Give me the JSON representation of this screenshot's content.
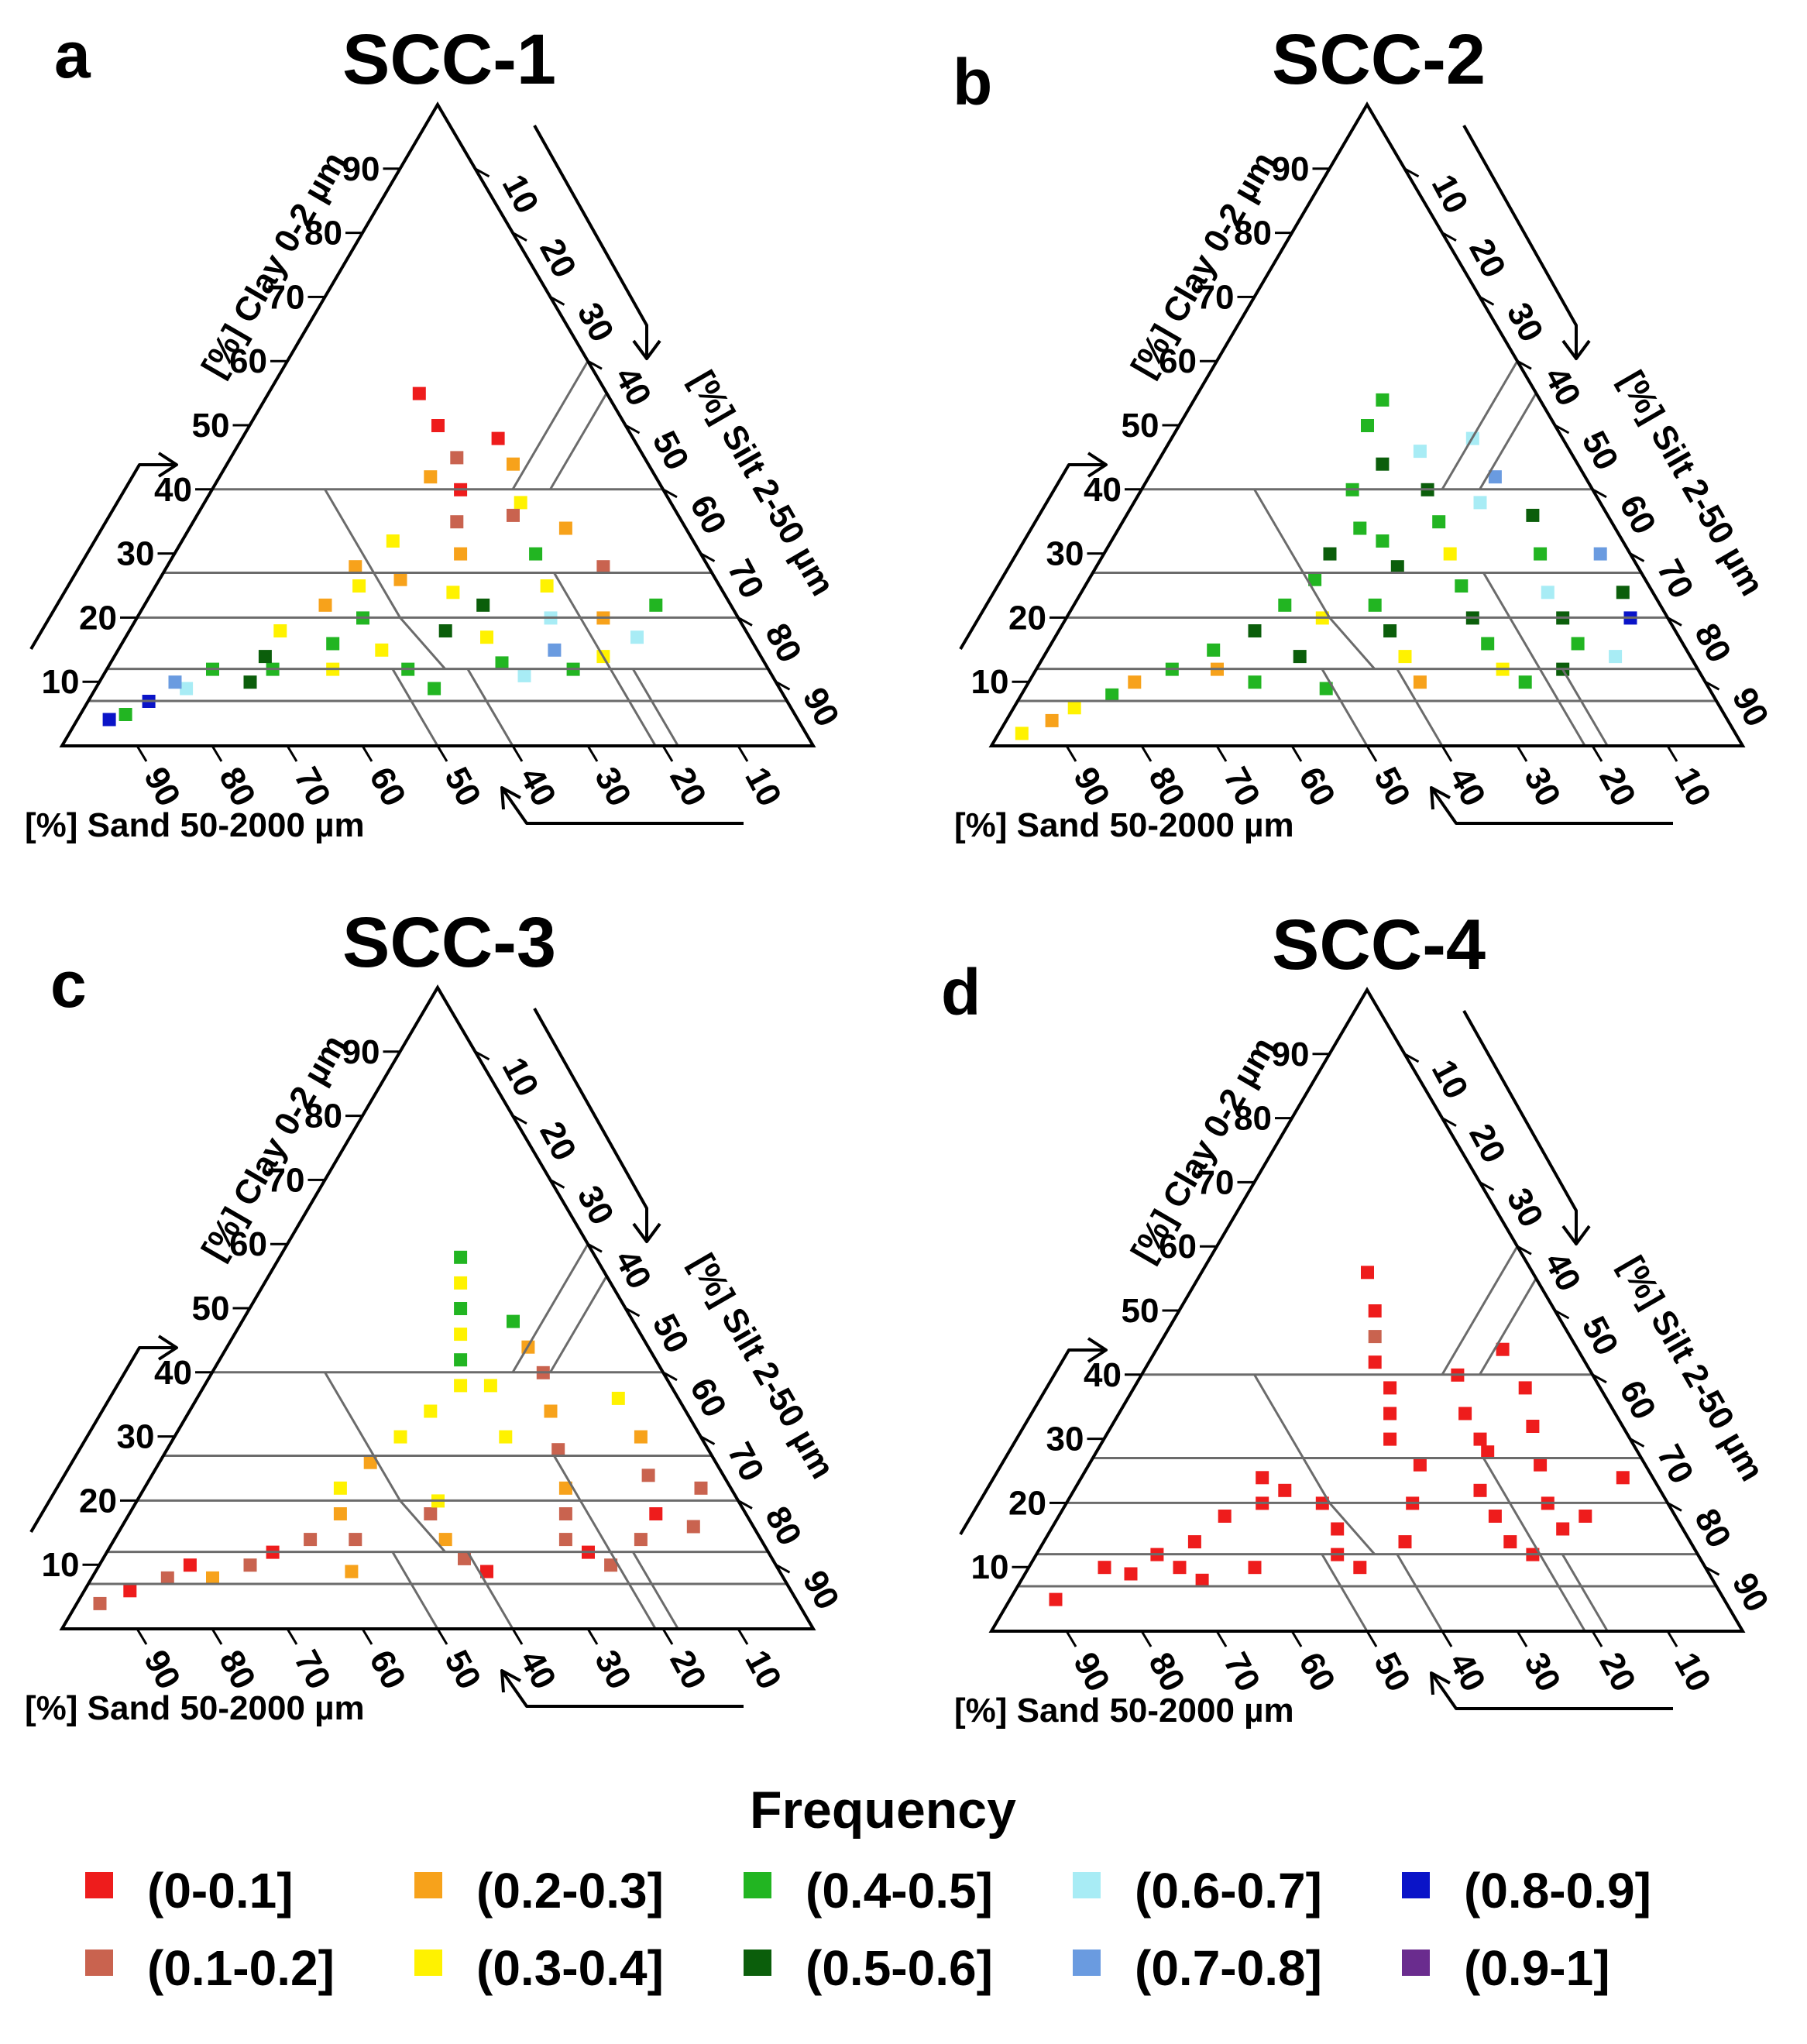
{
  "figure": {
    "legend": {
      "title": "Frequency",
      "entries": [
        {
          "label": "(0-0.1]",
          "color": "#ee1c1c"
        },
        {
          "label": "(0.1-0.2]",
          "color": "#c9634f"
        },
        {
          "label": "(0.2-0.3]",
          "color": "#f7a21b"
        },
        {
          "label": "(0.3-0.4]",
          "color": "#fff200"
        },
        {
          "label": "(0.4-0.5]",
          "color": "#22b522"
        },
        {
          "label": "(0.5-0.6]",
          "color": "#0b5e0b"
        },
        {
          "label": "(0.6-0.7]",
          "color": "#a8ecf5"
        },
        {
          "label": "(0.7-0.8]",
          "color": "#6a9be0"
        },
        {
          "label": "(0.8-0.9]",
          "color": "#0a14c8"
        },
        {
          "label": "(0.9-1]",
          "color": "#6a2c8e"
        }
      ]
    }
  },
  "chart_data": [
    {
      "type": "heatmap",
      "chart_kind": "ternary",
      "panel": "a",
      "title": "SCC-1",
      "axes": {
        "clay": "[%] Clay 0-2 µm",
        "silt": "[%] Silt 2-50 µm",
        "sand": "[%] Sand 50-2000 µm"
      },
      "ticks": [
        "10",
        "20",
        "30",
        "40",
        "50",
        "60",
        "70",
        "80",
        "90"
      ],
      "grid": "USDA texture class boundaries",
      "region": {
        "clay_range": [
          2,
          56
        ],
        "silt_range": [
          5,
          75
        ],
        "sand_range": [
          15,
          92
        ]
      },
      "dominant_bins": [
        "(0.2-0.3]",
        "(0.3-0.4]",
        "(0.4-0.5]",
        "(0.1-0.2]"
      ],
      "cells": [
        [
          4,
          4,
          88,
          8
        ],
        [
          5,
          6,
          90,
          4
        ],
        [
          7,
          8,
          85,
          8
        ],
        [
          9,
          12,
          79,
          6
        ],
        [
          10,
          10,
          80,
          7
        ],
        [
          12,
          14,
          74,
          4
        ],
        [
          10,
          20,
          70,
          5
        ],
        [
          12,
          22,
          66,
          4
        ],
        [
          14,
          20,
          66,
          5
        ],
        [
          18,
          20,
          62,
          3
        ],
        [
          22,
          24,
          54,
          2
        ],
        [
          25,
          27,
          48,
          3
        ],
        [
          28,
          25,
          47,
          2
        ],
        [
          20,
          30,
          50,
          4
        ],
        [
          15,
          35,
          50,
          3
        ],
        [
          12,
          40,
          48,
          4
        ],
        [
          18,
          42,
          40,
          5
        ],
        [
          24,
          40,
          36,
          3
        ],
        [
          30,
          38,
          32,
          2
        ],
        [
          35,
          35,
          30,
          1
        ],
        [
          40,
          33,
          27,
          0
        ],
        [
          45,
          30,
          25,
          1
        ],
        [
          50,
          25,
          25,
          0
        ],
        [
          55,
          20,
          25,
          0
        ],
        [
          42,
          28,
          30,
          2
        ],
        [
          38,
          42,
          20,
          3
        ],
        [
          30,
          48,
          22,
          4
        ],
        [
          25,
          52,
          23,
          3
        ],
        [
          20,
          55,
          25,
          6
        ],
        [
          15,
          58,
          27,
          7
        ],
        [
          12,
          62,
          26,
          4
        ],
        [
          14,
          65,
          21,
          3
        ],
        [
          20,
          62,
          18,
          2
        ],
        [
          28,
          58,
          14,
          1
        ],
        [
          34,
          50,
          16,
          2
        ],
        [
          22,
          45,
          33,
          5
        ],
        [
          17,
          48,
          35,
          3
        ],
        [
          13,
          52,
          35,
          4
        ],
        [
          11,
          56,
          33,
          6
        ],
        [
          9,
          45,
          46,
          4
        ],
        [
          12,
          30,
          58,
          3
        ],
        [
          16,
          28,
          56,
          4
        ],
        [
          26,
          32,
          42,
          2
        ],
        [
          32,
          28,
          40,
          3
        ],
        [
          36,
          42,
          22,
          1
        ],
        [
          44,
          38,
          18,
          2
        ],
        [
          48,
          34,
          18,
          0
        ],
        [
          17,
          68,
          15,
          6
        ],
        [
          22,
          68,
          10,
          4
        ]
      ]
    },
    {
      "type": "heatmap",
      "chart_kind": "ternary",
      "panel": "b",
      "title": "SCC-2",
      "axes": {
        "clay": "[%] Clay 0-2 µm",
        "silt": "[%] Silt 2-50 µm",
        "sand": "[%] Sand 50-2000 µm"
      },
      "ticks": [
        "10",
        "20",
        "30",
        "40",
        "50",
        "60",
        "70",
        "80",
        "90"
      ],
      "grid": "USDA texture class boundaries",
      "region": {
        "clay_range": [
          2,
          55
        ],
        "silt_range": [
          3,
          80
        ],
        "sand_range": [
          10,
          95
        ]
      },
      "dominant_bins": [
        "(0.4-0.5]",
        "(0.5-0.6]",
        "(0.3-0.4]"
      ],
      "cells": [
        [
          2,
          3,
          95,
          3
        ],
        [
          4,
          6,
          90,
          2
        ],
        [
          6,
          8,
          86,
          3
        ],
        [
          8,
          12,
          80,
          4
        ],
        [
          10,
          14,
          76,
          2
        ],
        [
          12,
          18,
          70,
          4
        ],
        [
          15,
          22,
          63,
          4
        ],
        [
          18,
          26,
          56,
          5
        ],
        [
          22,
          28,
          50,
          4
        ],
        [
          26,
          30,
          44,
          4
        ],
        [
          30,
          30,
          40,
          5
        ],
        [
          34,
          32,
          34,
          4
        ],
        [
          40,
          28,
          32,
          4
        ],
        [
          44,
          30,
          26,
          5
        ],
        [
          50,
          25,
          25,
          4
        ],
        [
          54,
          25,
          21,
          4
        ],
        [
          46,
          34,
          20,
          6
        ],
        [
          40,
          38,
          22,
          5
        ],
        [
          35,
          42,
          23,
          4
        ],
        [
          30,
          46,
          24,
          3
        ],
        [
          25,
          50,
          25,
          4
        ],
        [
          20,
          54,
          26,
          5
        ],
        [
          16,
          58,
          26,
          4
        ],
        [
          12,
          62,
          26,
          3
        ],
        [
          10,
          66,
          24,
          4
        ],
        [
          12,
          70,
          18,
          5
        ],
        [
          16,
          70,
          14,
          4
        ],
        [
          20,
          66,
          14,
          5
        ],
        [
          24,
          62,
          14,
          6
        ],
        [
          30,
          58,
          12,
          4
        ],
        [
          36,
          54,
          10,
          5
        ],
        [
          42,
          46,
          12,
          7
        ],
        [
          48,
          40,
          12,
          6
        ],
        [
          22,
          40,
          38,
          4
        ],
        [
          18,
          44,
          38,
          5
        ],
        [
          14,
          48,
          38,
          3
        ],
        [
          10,
          52,
          38,
          2
        ],
        [
          9,
          40,
          51,
          4
        ],
        [
          14,
          34,
          52,
          5
        ],
        [
          20,
          34,
          46,
          3
        ],
        [
          28,
          40,
          32,
          5
        ],
        [
          32,
          36,
          32,
          4
        ],
        [
          38,
          46,
          16,
          6
        ],
        [
          20,
          75,
          5,
          8
        ],
        [
          24,
          72,
          4,
          5
        ],
        [
          14,
          76,
          10,
          6
        ],
        [
          30,
          66,
          4,
          7
        ],
        [
          10,
          30,
          60,
          4
        ],
        [
          12,
          24,
          64,
          2
        ]
      ]
    },
    {
      "type": "heatmap",
      "chart_kind": "ternary",
      "panel": "c",
      "title": "SCC-3",
      "axes": {
        "clay": "[%] Clay 0-2 µm",
        "silt": "[%] Silt 2-50 µm",
        "sand": "[%] Sand 50-2000 µm"
      },
      "ticks": [
        "10",
        "20",
        "30",
        "40",
        "50",
        "60",
        "70",
        "80",
        "90"
      ],
      "grid": "USDA texture class boundaries",
      "region": {
        "clay_range": [
          2,
          58
        ],
        "silt_range": [
          3,
          78
        ],
        "sand_range": [
          12,
          95
        ]
      },
      "dominant_bins": [
        "(0.1-0.2]",
        "(0.2-0.3]",
        "(0.3-0.4]",
        "(0-0.1]"
      ],
      "cells": [
        [
          4,
          3,
          93,
          1
        ],
        [
          6,
          6,
          88,
          0
        ],
        [
          8,
          10,
          82,
          1
        ],
        [
          10,
          12,
          78,
          0
        ],
        [
          8,
          16,
          76,
          2
        ],
        [
          10,
          20,
          70,
          1
        ],
        [
          12,
          22,
          66,
          0
        ],
        [
          14,
          26,
          60,
          1
        ],
        [
          18,
          28,
          54,
          2
        ],
        [
          22,
          26,
          52,
          3
        ],
        [
          26,
          28,
          46,
          2
        ],
        [
          30,
          30,
          40,
          3
        ],
        [
          34,
          32,
          34,
          3
        ],
        [
          38,
          34,
          28,
          3
        ],
        [
          42,
          32,
          26,
          4
        ],
        [
          46,
          30,
          24,
          3
        ],
        [
          50,
          28,
          22,
          4
        ],
        [
          54,
          26,
          20,
          3
        ],
        [
          58,
          24,
          18,
          4
        ],
        [
          44,
          40,
          16,
          2
        ],
        [
          40,
          44,
          16,
          1
        ],
        [
          34,
          48,
          18,
          2
        ],
        [
          28,
          52,
          20,
          1
        ],
        [
          22,
          56,
          22,
          2
        ],
        [
          18,
          58,
          24,
          1
        ],
        [
          14,
          60,
          26,
          1
        ],
        [
          12,
          64,
          24,
          0
        ],
        [
          10,
          68,
          22,
          1
        ],
        [
          14,
          70,
          16,
          1
        ],
        [
          18,
          70,
          12,
          0
        ],
        [
          24,
          66,
          10,
          1
        ],
        [
          30,
          62,
          8,
          2
        ],
        [
          36,
          56,
          8,
          3
        ],
        [
          18,
          40,
          42,
          1
        ],
        [
          14,
          44,
          42,
          2
        ],
        [
          11,
          48,
          41,
          1
        ],
        [
          9,
          52,
          39,
          0
        ],
        [
          9,
          34,
          57,
          2
        ],
        [
          14,
          32,
          54,
          1
        ],
        [
          20,
          40,
          40,
          3
        ],
        [
          30,
          44,
          26,
          3
        ],
        [
          38,
          38,
          24,
          3
        ],
        [
          48,
          36,
          16,
          4
        ],
        [
          16,
          76,
          8,
          1
        ],
        [
          22,
          74,
          4,
          1
        ]
      ]
    },
    {
      "type": "heatmap",
      "chart_kind": "ternary",
      "panel": "d",
      "title": "SCC-4",
      "axes": {
        "clay": "[%] Clay 0-2 µm",
        "silt": "[%] Silt 2-50 µm",
        "sand": "[%] Sand 50-2000 µm"
      },
      "ticks": [
        "10",
        "20",
        "30",
        "40",
        "50",
        "60",
        "70",
        "80",
        "90"
      ],
      "grid": "USDA texture class boundaries",
      "region": {
        "clay_range": [
          5,
          56
        ],
        "silt_range": [
          6,
          75
        ],
        "sand_range": [
          12,
          88
        ]
      },
      "dominant_bins": [
        "(0-0.1]"
      ],
      "cells": [
        [
          5,
          6,
          89,
          0
        ],
        [
          10,
          10,
          80,
          0
        ],
        [
          9,
          14,
          77,
          0
        ],
        [
          12,
          16,
          72,
          0
        ],
        [
          10,
          20,
          70,
          0
        ],
        [
          14,
          20,
          66,
          0
        ],
        [
          18,
          22,
          60,
          0
        ],
        [
          20,
          26,
          54,
          0
        ],
        [
          22,
          28,
          50,
          0
        ],
        [
          24,
          24,
          52,
          0
        ],
        [
          20,
          34,
          46,
          0
        ],
        [
          16,
          38,
          46,
          0
        ],
        [
          12,
          40,
          48,
          0
        ],
        [
          10,
          44,
          46,
          0
        ],
        [
          14,
          48,
          38,
          0
        ],
        [
          20,
          46,
          34,
          0
        ],
        [
          26,
          44,
          30,
          0
        ],
        [
          30,
          38,
          32,
          0
        ],
        [
          34,
          36,
          30,
          0
        ],
        [
          38,
          34,
          28,
          0
        ],
        [
          42,
          30,
          28,
          0
        ],
        [
          46,
          28,
          26,
          1
        ],
        [
          50,
          26,
          24,
          0
        ],
        [
          56,
          22,
          22,
          0
        ],
        [
          40,
          42,
          18,
          0
        ],
        [
          34,
          46,
          20,
          0
        ],
        [
          28,
          52,
          20,
          0
        ],
        [
          22,
          54,
          24,
          0
        ],
        [
          18,
          58,
          24,
          0
        ],
        [
          14,
          62,
          24,
          0
        ],
        [
          12,
          66,
          22,
          0
        ],
        [
          16,
          68,
          16,
          0
        ],
        [
          20,
          64,
          16,
          0
        ],
        [
          26,
          60,
          14,
          0
        ],
        [
          32,
          56,
          12,
          0
        ],
        [
          38,
          52,
          10,
          0
        ],
        [
          44,
          46,
          10,
          0
        ],
        [
          30,
          50,
          20,
          0
        ],
        [
          18,
          70,
          12,
          0
        ],
        [
          24,
          72,
          4,
          0
        ],
        [
          10,
          30,
          60,
          0
        ],
        [
          8,
          24,
          68,
          0
        ]
      ]
    }
  ]
}
